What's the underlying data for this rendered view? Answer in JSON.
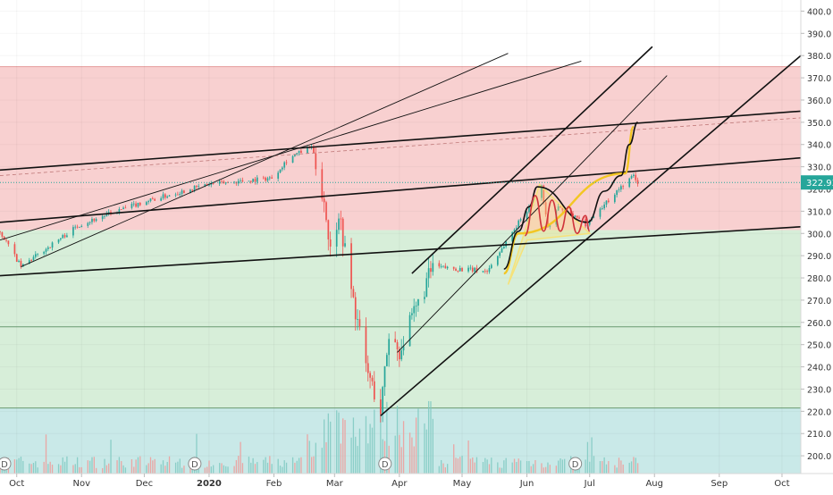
{
  "chart_data": {
    "type": "candlestick",
    "title": "",
    "price_scale": {
      "range": [
        192,
        405
      ],
      "ticks": [
        200,
        210,
        220,
        230,
        240,
        250,
        260,
        270,
        280,
        290,
        300,
        310,
        320,
        330,
        340,
        350,
        360,
        370,
        380,
        390,
        400
      ]
    },
    "time_axis": {
      "labels": [
        "Oct",
        "Nov",
        "Dec",
        "2020",
        "Feb",
        "Mar",
        "Apr",
        "May",
        "Jun",
        "Jul",
        "Aug",
        "Sep",
        "Oct"
      ],
      "range": [
        "2019-09-23",
        "2020-10-10"
      ]
    },
    "last_price": {
      "label": "322.93",
      "value": 322.93,
      "color": "#26a69a"
    },
    "zones": [
      {
        "name": "resistance-zone",
        "from": 301.5,
        "to": 375,
        "color": "#f8d0d0"
      },
      {
        "name": "support-zone",
        "from": 221.5,
        "to": 301.5,
        "color": "#d7eed9"
      },
      {
        "name": "lower-zone",
        "from": 192,
        "to": 221.5,
        "color": "#c9e9e8"
      }
    ],
    "horizontal_levels": [
      258,
      221.5
    ],
    "trend_lines": [
      {
        "from": [
          "2019-09-23",
          328.5
        ],
        "to": [
          "2020-10-10",
          355
        ],
        "width": 1.6
      },
      {
        "from": [
          "2019-09-23",
          305
        ],
        "to": [
          "2020-10-10",
          334
        ],
        "width": 1.6
      },
      {
        "from": [
          "2019-09-23",
          281
        ],
        "to": [
          "2020-10-10",
          303
        ],
        "width": 1.6
      },
      {
        "from": [
          "2019-09-23",
          326
        ],
        "to": [
          "2020-10-10",
          352
        ],
        "width": 0.8,
        "dashed": true
      },
      {
        "from": [
          "2019-10-03",
          285
        ],
        "to": [
          "2020-05-23",
          381
        ],
        "width": 0.9
      },
      {
        "from": [
          "2019-09-23",
          297
        ],
        "to": [
          "2020-06-27",
          377.5
        ],
        "width": 0.9
      },
      {
        "from": [
          "2020-04-07",
          282
        ],
        "to": [
          "2020-07-31",
          384
        ],
        "width": 1.6
      },
      {
        "from": [
          "2020-03-23",
          218
        ],
        "to": [
          "2020-10-10",
          380
        ],
        "width": 1.6
      },
      {
        "from": [
          "2020-03-31",
          246.5
        ],
        "to": [
          "2020-08-07",
          371
        ],
        "width": 0.9
      }
    ],
    "triangle": {
      "points": [
        [
          "2020-05-23",
          277
        ],
        [
          "2020-06-07",
          322
        ],
        [
          "2020-07-01",
          300
        ],
        [
          "2020-06-01",
          297
        ]
      ],
      "color": "#f5e27a"
    },
    "projection_paths": {
      "red": {
        "color": "#d0343b",
        "points": [
          [
            "2020-05-31",
            299
          ],
          [
            "2020-06-05",
            317
          ],
          [
            "2020-06-09",
            301
          ],
          [
            "2020-06-13",
            315
          ],
          [
            "2020-06-17",
            301
          ],
          [
            "2020-06-21",
            312
          ],
          [
            "2020-06-25",
            300
          ],
          [
            "2020-06-29",
            308
          ],
          [
            "2020-07-01",
            301
          ]
        ]
      },
      "black": {
        "color": "#111111",
        "points": [
          [
            "2020-05-21",
            284
          ],
          [
            "2020-05-28",
            301
          ],
          [
            "2020-06-02",
            312
          ],
          [
            "2020-06-06",
            321
          ],
          [
            "2020-06-30",
            305
          ],
          [
            "2020-07-08",
            319
          ],
          [
            "2020-07-16",
            326
          ],
          [
            "2020-07-20",
            340
          ],
          [
            "2020-07-24",
            350
          ]
        ]
      },
      "yellow": {
        "color": "#f3c623",
        "points": [
          [
            "2020-05-21",
            282
          ],
          [
            "2020-05-28",
            300
          ],
          [
            "2020-07-18",
            327
          ],
          [
            "2020-07-22",
            348
          ]
        ]
      }
    },
    "ohlc_generator": {
      "anchors": [
        [
          "2019-09-23",
          301
        ],
        [
          "2019-10-03",
          285
        ],
        [
          "2019-10-31",
          304
        ],
        [
          "2019-11-30",
          314
        ],
        [
          "2019-12-31",
          322
        ],
        [
          "2020-01-31",
          325
        ],
        [
          "2020-02-08",
          334
        ],
        [
          "2020-02-19",
          339
        ],
        [
          "2020-02-25",
          315
        ],
        [
          "2020-02-28",
          292
        ],
        [
          "2020-03-03",
          310
        ],
        [
          "2020-03-09",
          275
        ],
        [
          "2020-03-16",
          240
        ],
        [
          "2020-03-23",
          220
        ],
        [
          "2020-03-27",
          255
        ],
        [
          "2020-04-01",
          247
        ],
        [
          "2020-04-17",
          285
        ],
        [
          "2020-05-13",
          283
        ],
        [
          "2020-06-08",
          321
        ],
        [
          "2020-06-11",
          302
        ],
        [
          "2020-06-16",
          312
        ],
        [
          "2020-06-29",
          304
        ],
        [
          "2020-07-15",
          320
        ],
        [
          "2020-07-22",
          326
        ],
        [
          "2020-07-24",
          322.93
        ]
      ],
      "up_color": "#26a69a",
      "down_color": "#ef5350"
    },
    "dividend_markers": [
      "2019-09-23",
      "2019-12-23",
      "2020-03-23",
      "2020-06-22"
    ],
    "dividend_label": "D"
  }
}
